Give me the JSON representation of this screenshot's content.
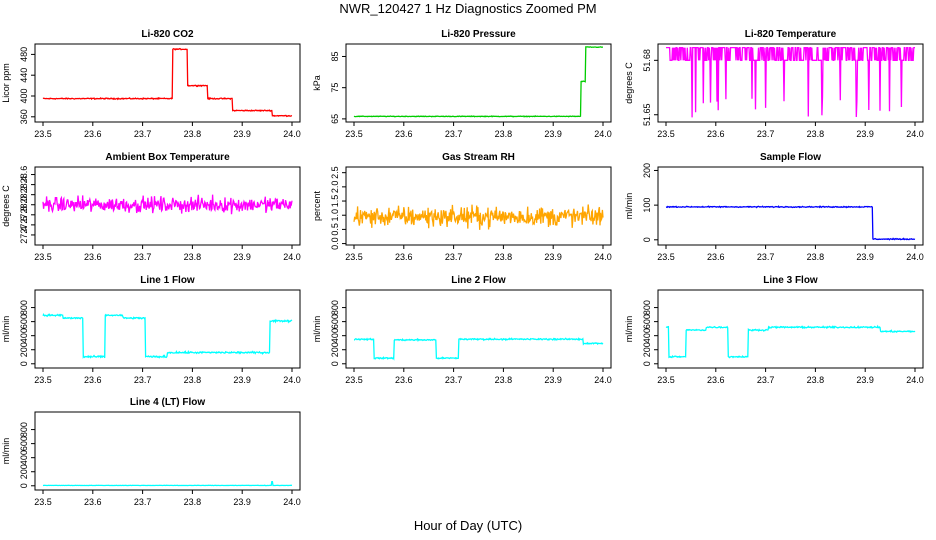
{
  "figure": {
    "title": "NWR_120427  1 Hz Diagnostics Zoomed PM",
    "xlabel": "Hour of Day (UTC)"
  },
  "chart_data": [
    {
      "type": "line",
      "title": "Li-820 CO2",
      "ylabel": "Licor ppm",
      "color": "#ff0000",
      "xlim": [
        23.5,
        24.0
      ],
      "xticks": [
        23.5,
        23.6,
        23.7,
        23.8,
        23.9,
        24.0
      ],
      "ylim": [
        350,
        500
      ],
      "yticks": [
        360,
        400,
        440,
        480
      ],
      "series": [
        {
          "noise": 1,
          "steps": [
            [
              23.5,
              23.76,
              395
            ],
            [
              23.76,
              23.79,
              490
            ],
            [
              23.79,
              23.83,
              420
            ],
            [
              23.83,
              23.88,
              395
            ],
            [
              23.88,
              23.96,
              372
            ],
            [
              23.96,
              24.0,
              362
            ]
          ]
        }
      ]
    },
    {
      "type": "line",
      "title": "Li-820 Pressure",
      "ylabel": "kPa",
      "color": "#00cc00",
      "xlim": [
        23.5,
        24.0
      ],
      "xticks": [
        23.5,
        23.6,
        23.7,
        23.8,
        23.9,
        24.0
      ],
      "ylim": [
        64,
        89
      ],
      "yticks": [
        65,
        75,
        85
      ],
      "series": [
        {
          "noise": 0.1,
          "steps": [
            [
              23.5,
              23.955,
              65.8
            ],
            [
              23.955,
              23.965,
              77
            ],
            [
              23.965,
              24.0,
              88
            ]
          ]
        }
      ]
    },
    {
      "type": "line",
      "title": "Li-820 Temperature",
      "ylabel": "degrees C",
      "color": "#ff00ff",
      "xlim": [
        23.5,
        24.0
      ],
      "xticks": [
        23.5,
        23.6,
        23.7,
        23.8,
        23.9,
        24.0
      ],
      "ylim": [
        51.646,
        51.689
      ],
      "yticks": [
        51.65,
        51.68
      ],
      "series": [
        {
          "levels": [
            51.68,
            51.687
          ],
          "dips": [
            51.66,
            51.648
          ],
          "steps": [
            [
              23.5,
              24.0,
              51.683
            ]
          ]
        }
      ]
    },
    {
      "type": "line",
      "title": "Ambient Box Temperature",
      "ylabel": "degrees C",
      "color": "#ff00ff",
      "xlim": [
        23.5,
        24.0
      ],
      "xticks": [
        23.5,
        23.6,
        23.7,
        23.8,
        23.9,
        24.0
      ],
      "ylim": [
        27.2,
        28.75
      ],
      "yticks": [
        27.4,
        27.6,
        27.8,
        28.0,
        28.2,
        28.4,
        28.6
      ],
      "series": [
        {
          "noise": 0.15,
          "steps": [
            [
              23.5,
              24.0,
              28.0
            ]
          ]
        }
      ]
    },
    {
      "type": "line",
      "title": "Gas Stream RH",
      "ylabel": "percent",
      "color": "#ffa500",
      "xlim": [
        23.5,
        24.0
      ],
      "xticks": [
        23.5,
        23.6,
        23.7,
        23.8,
        23.9,
        24.0
      ],
      "ylim": [
        -0.05,
        2.7
      ],
      "yticks": [
        0.0,
        0.5,
        1.0,
        1.5,
        2.0,
        2.5
      ],
      "series": [
        {
          "noise": 0.35,
          "steps": [
            [
              23.5,
              24.0,
              0.95
            ]
          ]
        }
      ]
    },
    {
      "type": "line",
      "title": "Sample Flow",
      "ylabel": "ml/min",
      "color": "#0000ff",
      "xlim": [
        23.5,
        24.0
      ],
      "xticks": [
        23.5,
        23.6,
        23.7,
        23.8,
        23.9,
        24.0
      ],
      "ylim": [
        -15,
        210
      ],
      "yticks": [
        0,
        100,
        200
      ],
      "series": [
        {
          "noise": 1.5,
          "steps": [
            [
              23.5,
              23.915,
              95
            ],
            [
              23.915,
              24.0,
              2
            ]
          ]
        }
      ]
    },
    {
      "type": "line",
      "title": "Line 1 Flow",
      "ylabel": "ml/min",
      "color": "#00ffff",
      "xlim": [
        23.5,
        24.0
      ],
      "xticks": [
        23.5,
        23.6,
        23.7,
        23.8,
        23.9,
        24.0
      ],
      "ylim": [
        -60,
        1050
      ],
      "yticks": [
        0,
        200,
        400,
        600,
        800
      ],
      "series": [
        {
          "noise": 12,
          "steps": [
            [
              23.5,
              23.54,
              690
            ],
            [
              23.54,
              23.58,
              650
            ],
            [
              23.58,
              23.625,
              100
            ],
            [
              23.625,
              23.66,
              690
            ],
            [
              23.66,
              23.705,
              650
            ],
            [
              23.705,
              23.75,
              100
            ],
            [
              23.75,
              23.955,
              160
            ],
            [
              23.955,
              24.0,
              610
            ]
          ]
        }
      ]
    },
    {
      "type": "line",
      "title": "Line 2 Flow",
      "ylabel": "ml/min",
      "color": "#00ffff",
      "xlim": [
        23.5,
        24.0
      ],
      "xticks": [
        23.5,
        23.6,
        23.7,
        23.8,
        23.9,
        24.0
      ],
      "ylim": [
        -60,
        1050
      ],
      "yticks": [
        0,
        200,
        400,
        600,
        800
      ],
      "series": [
        {
          "noise": 10,
          "steps": [
            [
              23.5,
              23.54,
              350
            ],
            [
              23.54,
              23.58,
              80
            ],
            [
              23.58,
              23.665,
              340
            ],
            [
              23.665,
              23.71,
              80
            ],
            [
              23.71,
              23.96,
              350
            ],
            [
              23.96,
              24.0,
              290
            ]
          ]
        }
      ]
    },
    {
      "type": "line",
      "title": "Line 3 Flow",
      "ylabel": "ml/min",
      "color": "#00ffff",
      "xlim": [
        23.5,
        24.0
      ],
      "xticks": [
        23.5,
        23.6,
        23.7,
        23.8,
        23.9,
        24.0
      ],
      "ylim": [
        -60,
        1050
      ],
      "yticks": [
        0,
        200,
        400,
        600,
        800
      ],
      "series": [
        {
          "noise": 10,
          "steps": [
            [
              23.5,
              23.505,
              520
            ],
            [
              23.505,
              23.54,
              100
            ],
            [
              23.54,
              23.58,
              480
            ],
            [
              23.58,
              23.625,
              520
            ],
            [
              23.625,
              23.665,
              100
            ],
            [
              23.665,
              23.705,
              480
            ],
            [
              23.705,
              23.93,
              520
            ],
            [
              23.93,
              24.0,
              460
            ]
          ]
        }
      ]
    },
    {
      "type": "line",
      "title": "Line 4 (LT) Flow",
      "ylabel": "ml/min",
      "color": "#00ffff",
      "xlim": [
        23.5,
        24.0
      ],
      "xticks": [
        23.5,
        23.6,
        23.7,
        23.8,
        23.9,
        24.0
      ],
      "ylim": [
        -60,
        1050
      ],
      "yticks": [
        0,
        200,
        400,
        600,
        800
      ],
      "series": [
        {
          "noise": 2,
          "spike": [
            23.96,
            60
          ],
          "steps": [
            [
              23.5,
              24.0,
              5
            ]
          ]
        }
      ]
    }
  ]
}
